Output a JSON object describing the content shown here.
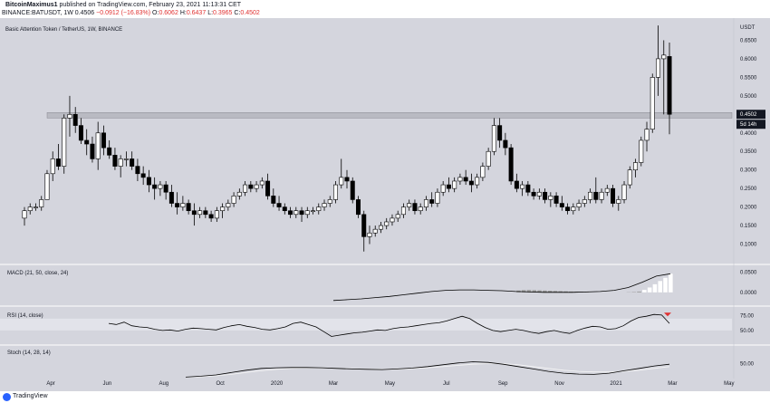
{
  "header": {
    "author": "BitcoinMaximus1",
    "published": "published on TradingView.com, February 23, 2021 11:13:31 CET",
    "symbol": "BINANCE:BATUSDT, 1W",
    "last": "0.4506",
    "change": "−0.0912 (−16.83%)",
    "o_label": "O:",
    "o_value": "0.6062",
    "h_label": "H:",
    "h_value": "0.6437",
    "l_label": "L:",
    "l_value": "0.3965",
    "c_label": "C:",
    "c_value": "0.4502"
  },
  "footer": {
    "brand": "TradingView"
  },
  "colors": {
    "background": "#d4d5dd",
    "up": "#ffffff",
    "down": "#000000",
    "border": "#000000",
    "hist": "#9a9a9a",
    "marker": "#e03131"
  },
  "chart_data": [
    {
      "type": "candlestick",
      "title": "Basic Attention Token / TetherUS, 1W, BINANCE",
      "unit_label": "USDT",
      "y_ticks": [
        "0.6500",
        "0.6000",
        "0.5500",
        "0.5000",
        "0.4500",
        "0.4000",
        "0.3500",
        "0.3000",
        "0.2500",
        "0.2000",
        "0.1500",
        "0.1000"
      ],
      "ylim": [
        0.05,
        0.7
      ],
      "x_ticks": [
        "Apr",
        "Jun",
        "Aug",
        "Oct",
        "2020",
        "Mar",
        "May",
        "Jul",
        "Sep",
        "Nov",
        "2021",
        "Mar",
        "May"
      ],
      "last_price_label": "0.4502",
      "countdown_label": "5d 14h",
      "resistance_zone": [
        0.44,
        0.455
      ],
      "candles": [
        [
          0.17,
          0.2,
          0.15,
          0.19
        ],
        [
          0.19,
          0.21,
          0.18,
          0.2
        ],
        [
          0.2,
          0.21,
          0.19,
          0.2
        ],
        [
          0.2,
          0.23,
          0.19,
          0.22
        ],
        [
          0.22,
          0.3,
          0.22,
          0.29
        ],
        [
          0.29,
          0.35,
          0.27,
          0.33
        ],
        [
          0.33,
          0.37,
          0.3,
          0.31
        ],
        [
          0.31,
          0.45,
          0.29,
          0.44
        ],
        [
          0.44,
          0.5,
          0.39,
          0.45
        ],
        [
          0.45,
          0.47,
          0.4,
          0.42
        ],
        [
          0.42,
          0.44,
          0.37,
          0.38
        ],
        [
          0.38,
          0.41,
          0.34,
          0.37
        ],
        [
          0.37,
          0.39,
          0.32,
          0.33
        ],
        [
          0.33,
          0.43,
          0.3,
          0.4
        ],
        [
          0.4,
          0.42,
          0.34,
          0.36
        ],
        [
          0.36,
          0.38,
          0.33,
          0.34
        ],
        [
          0.34,
          0.36,
          0.3,
          0.31
        ],
        [
          0.31,
          0.34,
          0.28,
          0.33
        ],
        [
          0.33,
          0.35,
          0.31,
          0.33
        ],
        [
          0.33,
          0.35,
          0.3,
          0.31
        ],
        [
          0.31,
          0.33,
          0.27,
          0.29
        ],
        [
          0.29,
          0.31,
          0.26,
          0.28
        ],
        [
          0.28,
          0.3,
          0.24,
          0.26
        ],
        [
          0.26,
          0.28,
          0.22,
          0.25
        ],
        [
          0.25,
          0.27,
          0.23,
          0.26
        ],
        [
          0.26,
          0.27,
          0.22,
          0.24
        ],
        [
          0.24,
          0.26,
          0.2,
          0.21
        ],
        [
          0.21,
          0.24,
          0.18,
          0.2
        ],
        [
          0.2,
          0.23,
          0.19,
          0.21
        ],
        [
          0.21,
          0.22,
          0.18,
          0.19
        ],
        [
          0.19,
          0.21,
          0.15,
          0.18
        ],
        [
          0.18,
          0.2,
          0.17,
          0.19
        ],
        [
          0.19,
          0.2,
          0.17,
          0.18
        ],
        [
          0.18,
          0.19,
          0.16,
          0.17
        ],
        [
          0.17,
          0.2,
          0.16,
          0.19
        ],
        [
          0.19,
          0.21,
          0.17,
          0.2
        ],
        [
          0.2,
          0.22,
          0.19,
          0.21
        ],
        [
          0.21,
          0.24,
          0.2,
          0.23
        ],
        [
          0.23,
          0.25,
          0.22,
          0.24
        ],
        [
          0.24,
          0.27,
          0.23,
          0.26
        ],
        [
          0.26,
          0.27,
          0.24,
          0.25
        ],
        [
          0.25,
          0.27,
          0.24,
          0.26
        ],
        [
          0.26,
          0.28,
          0.25,
          0.27
        ],
        [
          0.27,
          0.29,
          0.22,
          0.23
        ],
        [
          0.23,
          0.25,
          0.2,
          0.21
        ],
        [
          0.21,
          0.23,
          0.19,
          0.2
        ],
        [
          0.2,
          0.21,
          0.18,
          0.19
        ],
        [
          0.19,
          0.2,
          0.17,
          0.18
        ],
        [
          0.18,
          0.2,
          0.17,
          0.19
        ],
        [
          0.19,
          0.2,
          0.16,
          0.18
        ],
        [
          0.18,
          0.2,
          0.17,
          0.19
        ],
        [
          0.19,
          0.2,
          0.18,
          0.19
        ],
        [
          0.19,
          0.21,
          0.18,
          0.2
        ],
        [
          0.2,
          0.22,
          0.19,
          0.21
        ],
        [
          0.21,
          0.23,
          0.2,
          0.22
        ],
        [
          0.22,
          0.27,
          0.21,
          0.26
        ],
        [
          0.26,
          0.33,
          0.25,
          0.28
        ],
        [
          0.28,
          0.3,
          0.25,
          0.27
        ],
        [
          0.27,
          0.28,
          0.21,
          0.22
        ],
        [
          0.22,
          0.23,
          0.17,
          0.18
        ],
        [
          0.18,
          0.19,
          0.08,
          0.12
        ],
        [
          0.12,
          0.15,
          0.1,
          0.13
        ],
        [
          0.13,
          0.15,
          0.12,
          0.14
        ],
        [
          0.14,
          0.16,
          0.13,
          0.15
        ],
        [
          0.15,
          0.17,
          0.14,
          0.16
        ],
        [
          0.16,
          0.18,
          0.15,
          0.17
        ],
        [
          0.17,
          0.19,
          0.16,
          0.18
        ],
        [
          0.18,
          0.21,
          0.17,
          0.2
        ],
        [
          0.2,
          0.22,
          0.19,
          0.21
        ],
        [
          0.21,
          0.22,
          0.18,
          0.19
        ],
        [
          0.19,
          0.21,
          0.18,
          0.2
        ],
        [
          0.2,
          0.23,
          0.19,
          0.22
        ],
        [
          0.22,
          0.24,
          0.2,
          0.21
        ],
        [
          0.21,
          0.25,
          0.2,
          0.24
        ],
        [
          0.24,
          0.27,
          0.23,
          0.26
        ],
        [
          0.26,
          0.28,
          0.24,
          0.25
        ],
        [
          0.25,
          0.28,
          0.24,
          0.27
        ],
        [
          0.27,
          0.29,
          0.26,
          0.28
        ],
        [
          0.28,
          0.3,
          0.26,
          0.27
        ],
        [
          0.27,
          0.29,
          0.24,
          0.26
        ],
        [
          0.26,
          0.29,
          0.25,
          0.28
        ],
        [
          0.28,
          0.32,
          0.27,
          0.31
        ],
        [
          0.31,
          0.36,
          0.3,
          0.35
        ],
        [
          0.35,
          0.44,
          0.34,
          0.42
        ],
        [
          0.42,
          0.44,
          0.36,
          0.38
        ],
        [
          0.38,
          0.4,
          0.34,
          0.36
        ],
        [
          0.36,
          0.37,
          0.26,
          0.27
        ],
        [
          0.27,
          0.29,
          0.24,
          0.25
        ],
        [
          0.25,
          0.27,
          0.23,
          0.26
        ],
        [
          0.26,
          0.27,
          0.23,
          0.24
        ],
        [
          0.24,
          0.25,
          0.22,
          0.23
        ],
        [
          0.23,
          0.25,
          0.22,
          0.24
        ],
        [
          0.24,
          0.25,
          0.21,
          0.22
        ],
        [
          0.22,
          0.24,
          0.2,
          0.23
        ],
        [
          0.23,
          0.24,
          0.2,
          0.21
        ],
        [
          0.21,
          0.23,
          0.19,
          0.2
        ],
        [
          0.2,
          0.21,
          0.18,
          0.19
        ],
        [
          0.19,
          0.21,
          0.18,
          0.2
        ],
        [
          0.2,
          0.22,
          0.19,
          0.21
        ],
        [
          0.21,
          0.23,
          0.2,
          0.22
        ],
        [
          0.22,
          0.25,
          0.21,
          0.24
        ],
        [
          0.24,
          0.28,
          0.21,
          0.22
        ],
        [
          0.22,
          0.25,
          0.21,
          0.24
        ],
        [
          0.24,
          0.26,
          0.23,
          0.25
        ],
        [
          0.25,
          0.26,
          0.2,
          0.21
        ],
        [
          0.21,
          0.23,
          0.19,
          0.22
        ],
        [
          0.22,
          0.27,
          0.21,
          0.26
        ],
        [
          0.26,
          0.31,
          0.25,
          0.3
        ],
        [
          0.3,
          0.33,
          0.28,
          0.32
        ],
        [
          0.32,
          0.39,
          0.31,
          0.38
        ],
        [
          0.38,
          0.43,
          0.35,
          0.41
        ],
        [
          0.41,
          0.56,
          0.4,
          0.55
        ],
        [
          0.55,
          0.69,
          0.5,
          0.6
        ],
        [
          0.6,
          0.65,
          0.45,
          0.61
        ],
        [
          0.6062,
          0.6437,
          0.3965,
          0.4502
        ]
      ]
    },
    {
      "type": "bar_line",
      "title": "MACD (21, 50, close, 24)",
      "y_ticks": [
        "0.0500",
        "0.0000"
      ],
      "ylim": [
        -0.025,
        0.06
      ],
      "signal_line": [
        -0.02,
        -0.018,
        -0.016,
        -0.013,
        -0.01,
        -0.006,
        -0.002,
        0.002,
        0.005,
        0.006,
        0.006,
        0.005,
        0.004,
        0.002,
        0.001,
        0.0,
        0.0,
        0.0,
        0.001,
        0.002,
        0.005,
        0.012,
        0.025,
        0.04,
        0.046
      ],
      "histogram": [
        0,
        0,
        0,
        0,
        0,
        0,
        0,
        0,
        0,
        0.0045,
        0.0055,
        0.006,
        0.0055,
        0.005,
        0.0045,
        0.004,
        0.0035,
        0.003,
        0.0025,
        0.002,
        0.0015,
        0.001,
        0.0005,
        0,
        0,
        0,
        0,
        0,
        0,
        0,
        0.0005,
        0.001,
        0.002,
        0.006,
        0.012,
        0.02,
        0.028,
        0.036,
        0.046
      ]
    },
    {
      "type": "line",
      "title": "RSI (14, close)",
      "y_ticks": [
        "75.00",
        "50.00"
      ],
      "ylim": [
        30,
        85
      ],
      "band": [
        50,
        70
      ],
      "values": [
        62,
        60,
        64,
        58,
        56,
        55,
        52,
        50,
        51,
        49,
        52,
        54,
        53,
        52,
        51,
        55,
        58,
        60,
        57,
        55,
        52,
        51,
        53,
        56,
        62,
        64,
        60,
        56,
        48,
        40,
        42,
        44,
        46,
        47,
        49,
        51,
        50,
        53,
        55,
        56,
        58,
        60,
        62,
        63,
        66,
        70,
        74,
        70,
        62,
        55,
        50,
        48,
        50,
        52,
        50,
        47,
        45,
        48,
        50,
        47,
        45,
        50,
        54,
        57,
        56,
        52,
        53,
        58,
        66,
        72,
        74,
        77,
        76,
        62
      ]
    },
    {
      "type": "line",
      "title": "Stoch (14, 28, 14)",
      "y_ticks": [
        "50.00"
      ],
      "ylim": [
        0,
        100
      ],
      "k_values": [
        5,
        8,
        12,
        20,
        28,
        34,
        36,
        37,
        37,
        36,
        34,
        32,
        31,
        30,
        32,
        35,
        40,
        46,
        52,
        56,
        54,
        48,
        40,
        32,
        24,
        18,
        15,
        14,
        18,
        26,
        34,
        42,
        48
      ],
      "d_values": [
        5,
        6,
        9,
        14,
        20,
        26,
        31,
        34,
        35,
        35,
        34,
        33,
        32,
        31,
        31,
        33,
        36,
        40,
        44,
        48,
        50,
        50,
        46,
        40,
        34,
        28,
        24,
        22,
        22,
        24,
        28,
        34,
        40
      ]
    }
  ]
}
